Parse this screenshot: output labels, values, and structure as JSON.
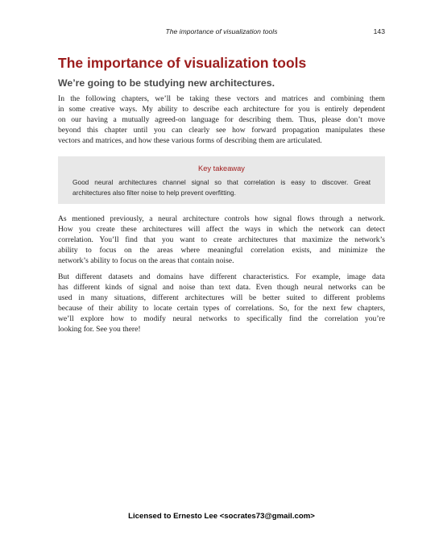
{
  "header": {
    "running_title": "The importance of visualization tools",
    "page_number": "143"
  },
  "section": {
    "title": "The importance of visualization tools",
    "subheading": "We’re going to be studying new architectures."
  },
  "paragraph1": [
    "In the following chapters, we’ll be taking these vectors and matrices and combining them",
    "in some creative ways. My ability to describe each architecture for you is entirely dependent",
    "on our having a mutually agreed-on language for describing them. Thus, please don’t move",
    "beyond this chapter until you can clearly see how forward propagation manipulates these",
    "vectors and matrices, and how these various forms of describing them are articulated."
  ],
  "takeaway": {
    "title": "Key takeaway",
    "lines": [
      "Good neural architectures channel signal so that correlation is easy to discover. Great",
      "architectures also filter noise to help prevent overfitting."
    ]
  },
  "paragraph2": [
    "As mentioned previously, a neural architecture controls how signal flows through a network.",
    "How you create these architectures will affect the ways in which the network can detect",
    "correlation. You’ll find that you want to create architectures that maximize the network’s",
    "ability to focus on the areas where meaningful correlation exists, and minimize the",
    "network’s ability to focus on the areas that contain noise."
  ],
  "paragraph3": [
    "But different datasets and domains have different characteristics. For example, image data",
    "has different kinds of signal and noise than text data. Even though neural networks can be",
    "used in many situations, different architectures will be better suited to different problems",
    "because of their ability to locate certain types of correlations. So, for the next few chapters,",
    "we’ll explore how to modify neural networks to specifically find the correlation you’re",
    "looking for. See you there!"
  ],
  "footer": {
    "license": "Licensed to Ernesto Lee <socrates73@gmail.com>"
  }
}
